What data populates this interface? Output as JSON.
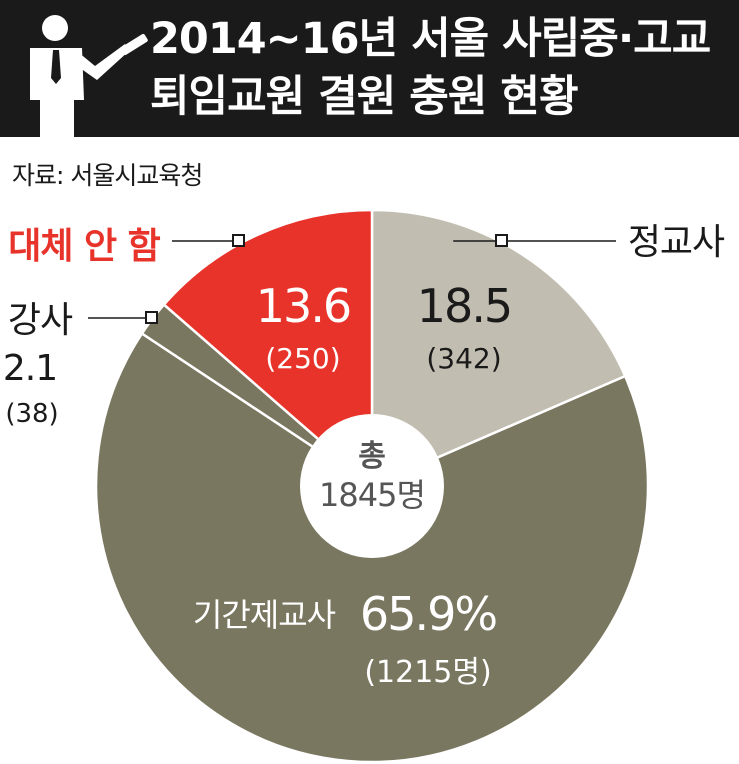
{
  "header": {
    "title_line1": "2014~16년 서울 사립중·고교",
    "title_line2": "퇴임교원 결원 충원 현황"
  },
  "source": "자료: 서울시교육청",
  "colors": {
    "header_bg": "#1a1a1a",
    "regular_teacher": "#c1bdb0",
    "contract_teacher": "#7a7760",
    "lecturer": "#7a7760",
    "no_replacement": "#e8332a",
    "center_circle": "#ffffff"
  },
  "chart_data": {
    "type": "pie",
    "style": "donut",
    "center_label": {
      "line1": "총",
      "line2": "1845명"
    },
    "total": 1845,
    "unit": "%",
    "slices": [
      {
        "label": "정교사",
        "percent": 18.5,
        "count": 342,
        "count_text": "(342)",
        "color": "#c1bdb0"
      },
      {
        "label": "기간제교사",
        "percent": 65.9,
        "count": 1215,
        "count_text": "(1215명)",
        "color": "#7a7760"
      },
      {
        "label": "강사",
        "percent": 2.1,
        "count": 38,
        "count_text": "(38)",
        "color": "#7a7760"
      },
      {
        "label": "대체 안 함",
        "percent": 13.6,
        "count": 250,
        "count_text": "(250)",
        "color": "#e8332a"
      }
    ]
  }
}
